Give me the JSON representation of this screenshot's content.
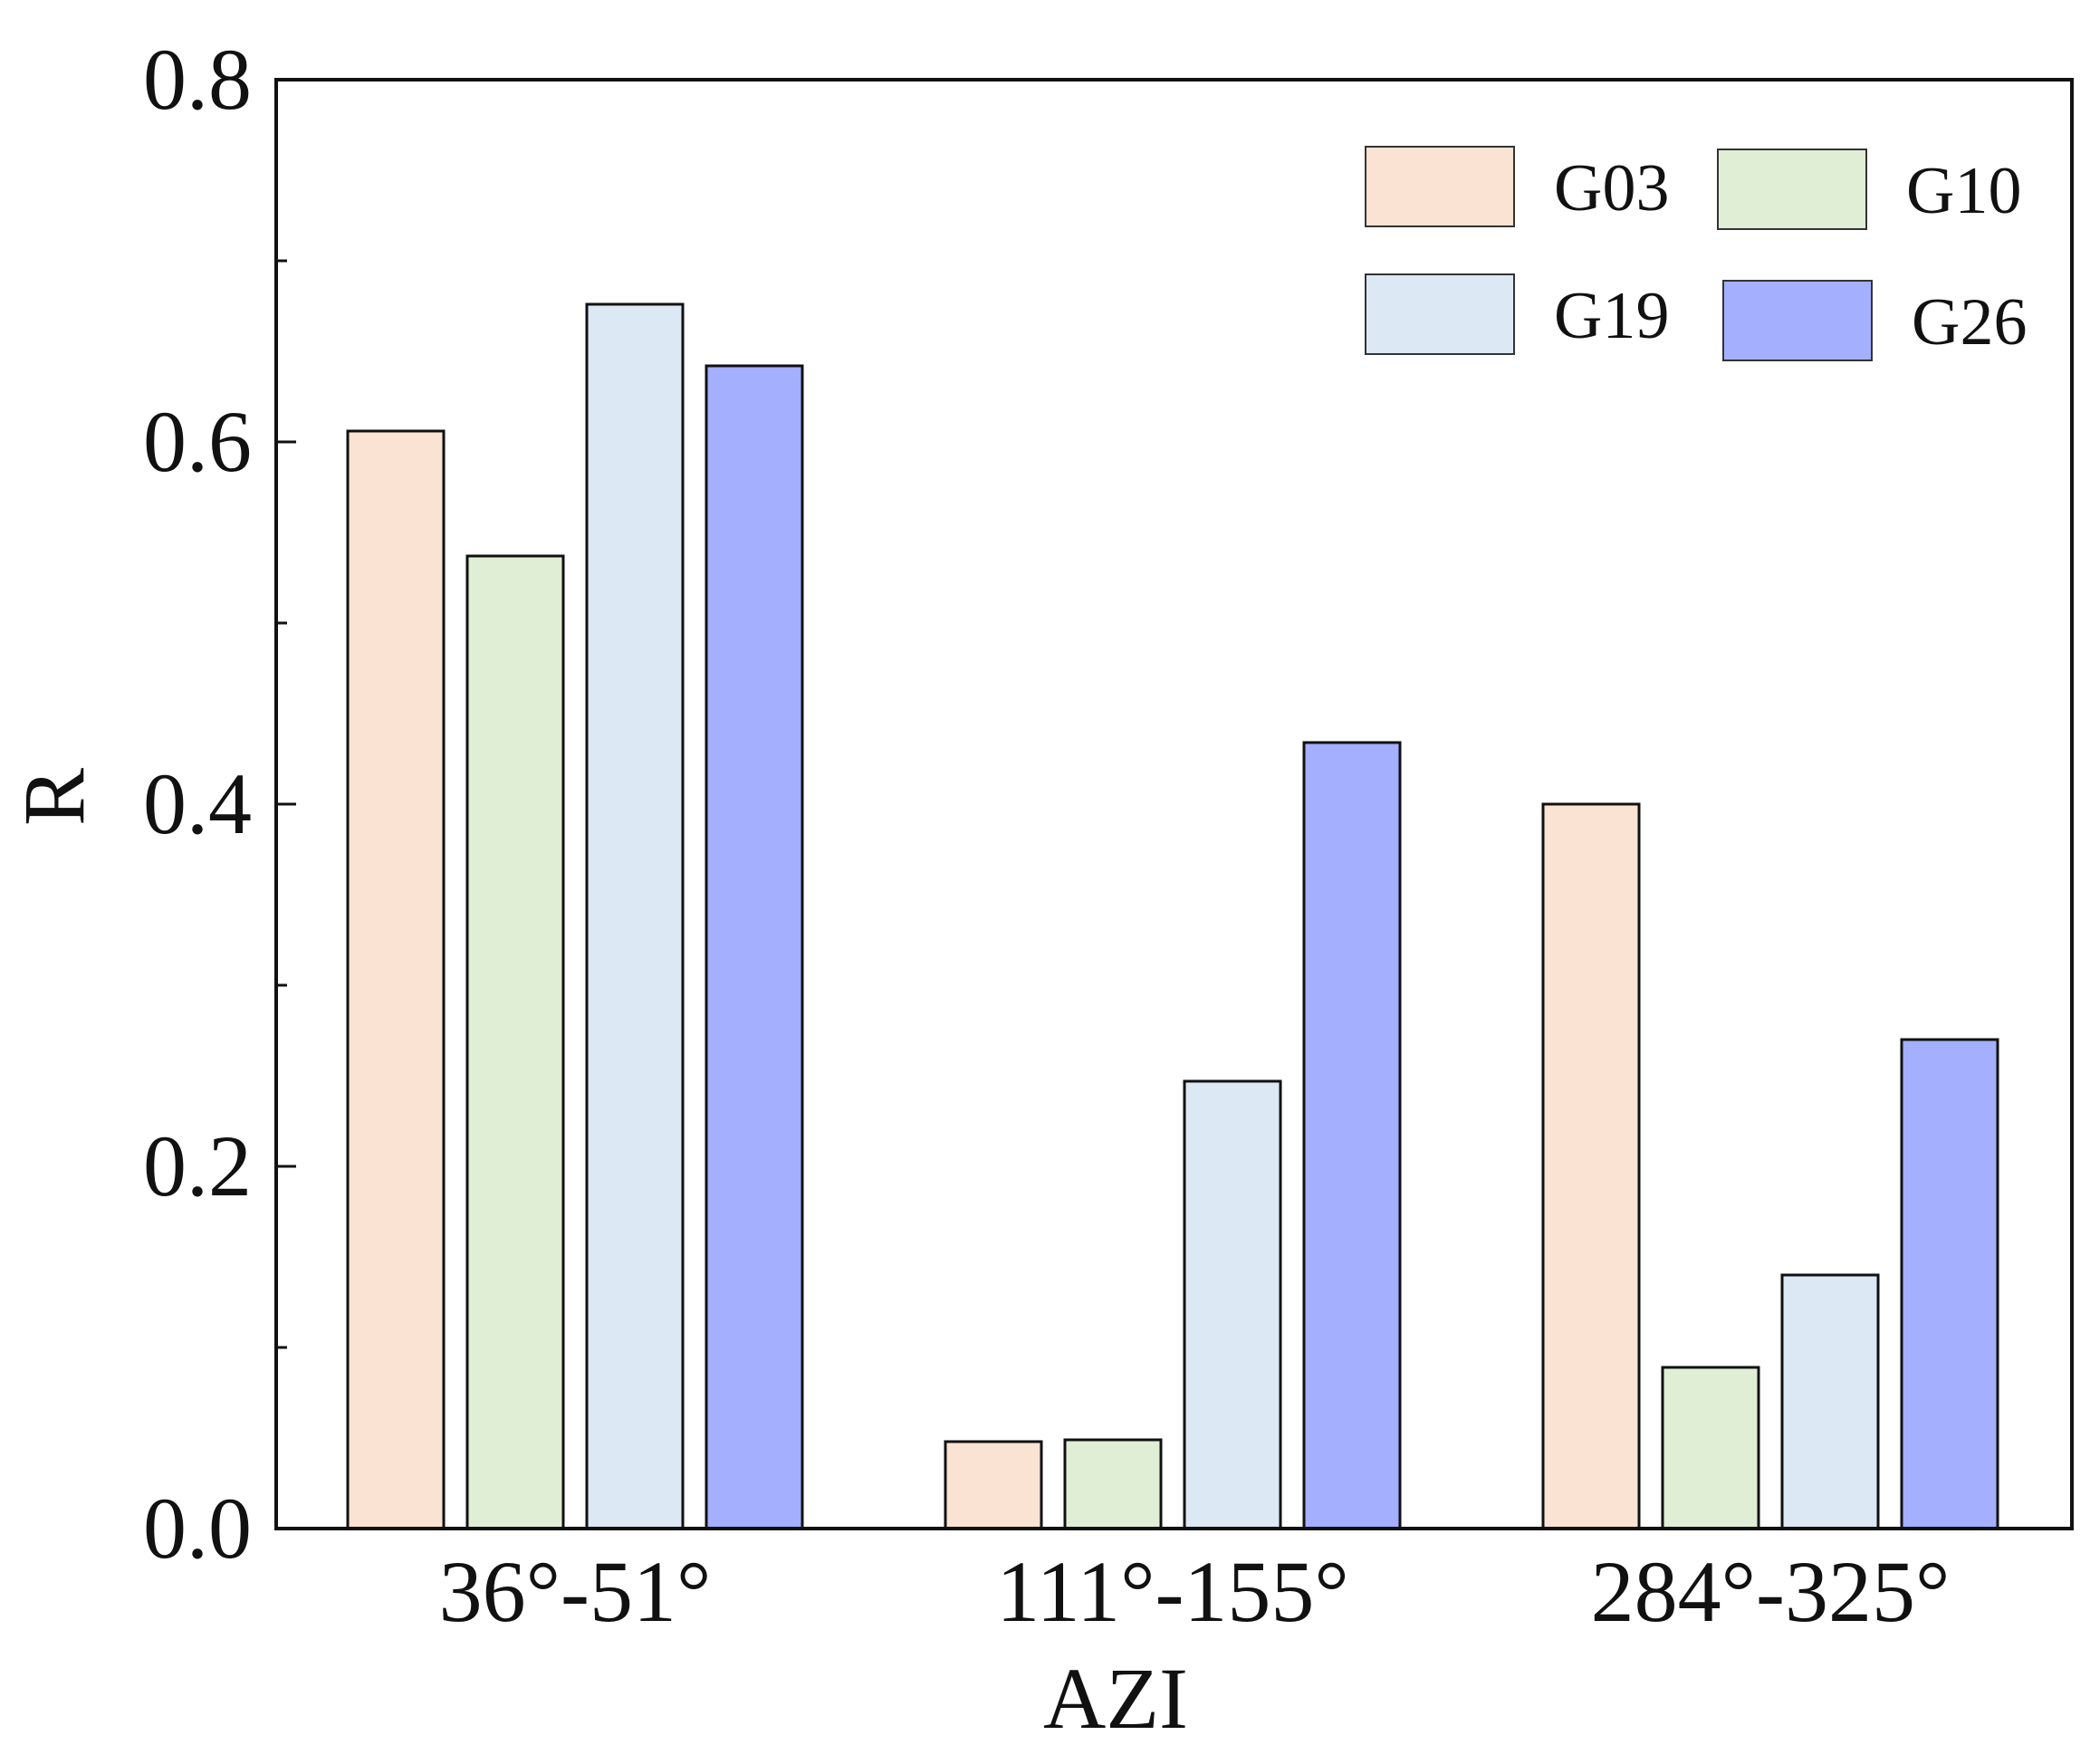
{
  "chart_data": {
    "type": "bar",
    "title": "",
    "xlabel": "AZI",
    "ylabel": "R",
    "ylim": [
      0,
      0.8
    ],
    "yticks": [
      "0.0",
      "0.2",
      "0.4",
      "0.6",
      "0.8"
    ],
    "grid": false,
    "legend_position": "top-right",
    "categories": [
      "36°-51°",
      "111°-155°",
      "284°-325°"
    ],
    "series": [
      {
        "name": "G03",
        "color": "#fbe3d3",
        "values": [
          0.606,
          0.048,
          0.4
        ]
      },
      {
        "name": "G10",
        "color": "#e1eed6",
        "values": [
          0.537,
          0.049,
          0.089
        ]
      },
      {
        "name": "G19",
        "color": "#dde8f5",
        "values": [
          0.676,
          0.247,
          0.14
        ]
      },
      {
        "name": "G26",
        "color": "#a4affe",
        "values": [
          0.642,
          0.434,
          0.27
        ]
      }
    ]
  }
}
